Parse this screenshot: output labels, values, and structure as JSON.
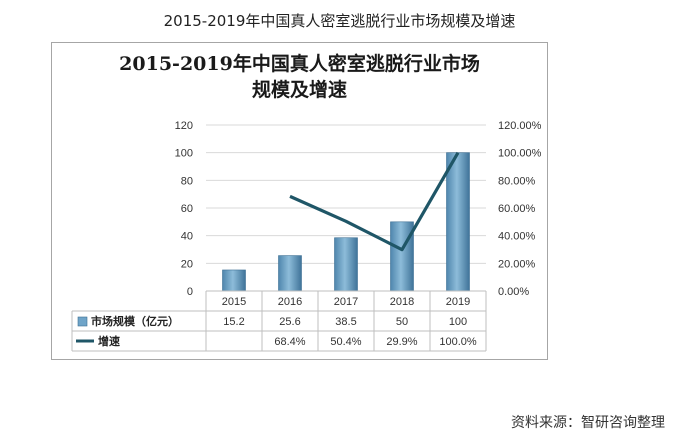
{
  "page_title": "2015-2019年中国真人密室逃脱行业市场规模及增速",
  "source": "资料来源：智研咨询整理",
  "chart_data": {
    "type": "bar",
    "title_lines": [
      "2015-2019年中国真人密室逃脱行业市场",
      "规模及增速"
    ],
    "categories": [
      "2015",
      "2016",
      "2017",
      "2018",
      "2019"
    ],
    "y_ticks": [
      "0",
      "20",
      "40",
      "60",
      "80",
      "100",
      "120"
    ],
    "y2_ticks": [
      "0.00%",
      "20.00%",
      "40.00%",
      "60.00%",
      "80.00%",
      "100.00%",
      "120.00%"
    ],
    "ylim": [
      0,
      120
    ],
    "y2lim": [
      0,
      120
    ],
    "series": [
      {
        "name": "市场规模（亿元）",
        "kind": "bar",
        "axis": "left",
        "values": [
          15.2,
          25.6,
          38.5,
          50,
          100
        ],
        "labels": [
          "15.2",
          "25.6",
          "38.5",
          "50",
          "100"
        ],
        "color": "#6fa4c8"
      },
      {
        "name": "增速",
        "kind": "line",
        "axis": "right",
        "values": [
          null,
          68.4,
          50.4,
          29.9,
          100.0
        ],
        "labels": [
          "",
          "68.4%",
          "50.4%",
          "29.9%",
          "100.0%"
        ],
        "color": "#1f5667"
      }
    ]
  }
}
